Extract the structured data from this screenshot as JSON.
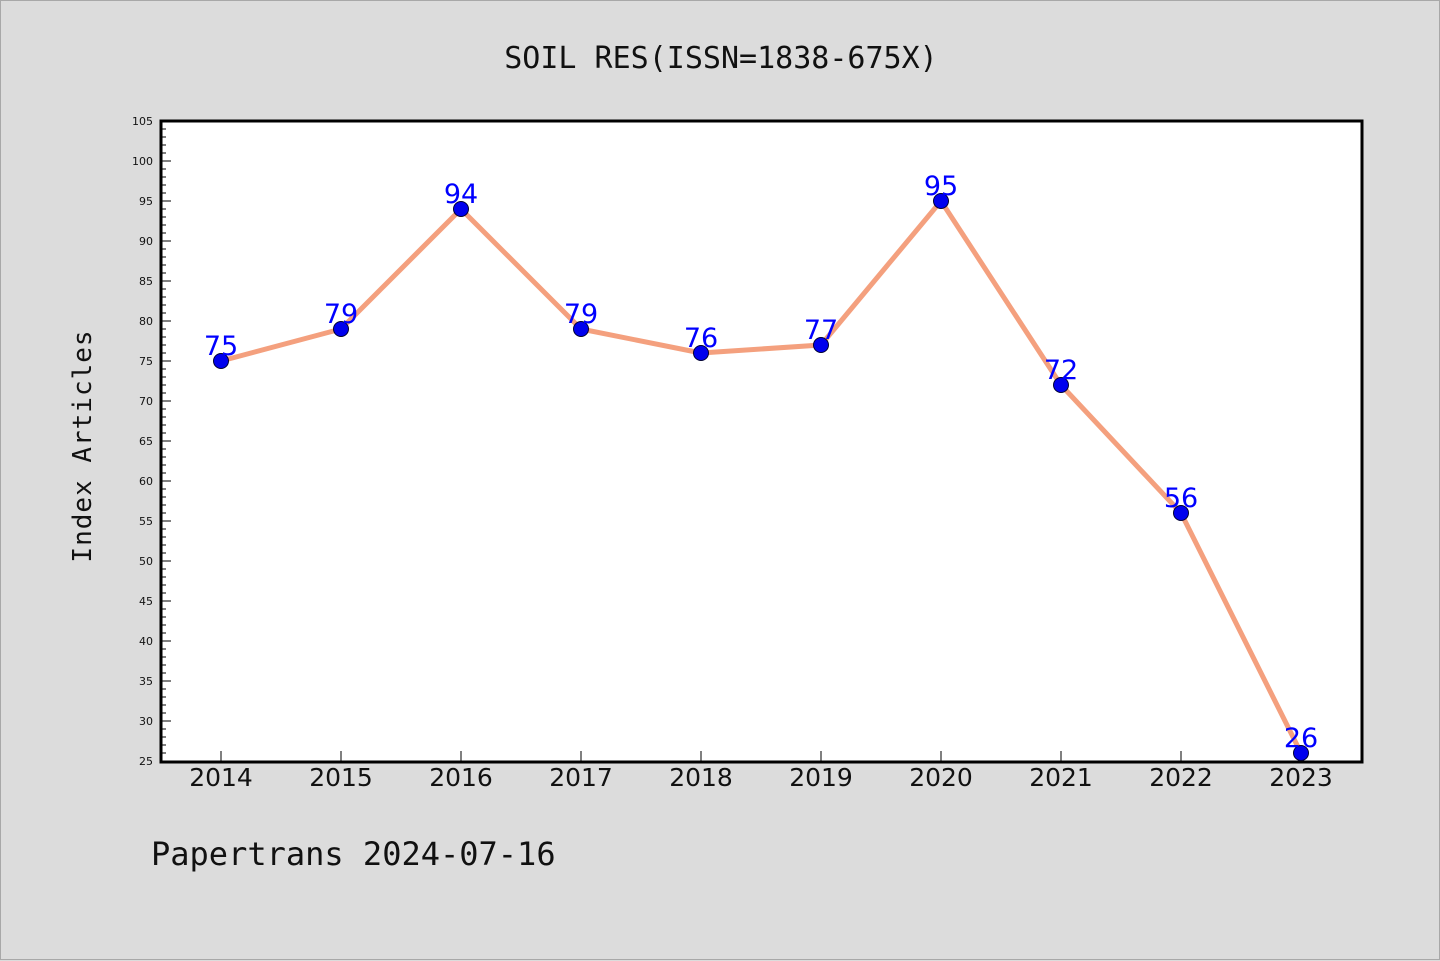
{
  "chart_data": {
    "type": "line",
    "title": "SOIL RES(ISSN=1838-675X)",
    "ylabel": "Index Articles",
    "xlabel": "",
    "categories": [
      "2014",
      "2015",
      "2016",
      "2017",
      "2018",
      "2019",
      "2020",
      "2021",
      "2022",
      "2023"
    ],
    "values": [
      75,
      79,
      94,
      79,
      76,
      77,
      95,
      72,
      56,
      26
    ],
    "ylim": [
      25,
      105
    ],
    "ytick_step": 5,
    "yminor_step": 1,
    "line_color": "#f4a07e",
    "marker_color": "#0000ee",
    "label_color": "#0000ff",
    "grid": false,
    "legend": "none"
  },
  "footer": {
    "text": "Papertrans 2024-07-16"
  }
}
